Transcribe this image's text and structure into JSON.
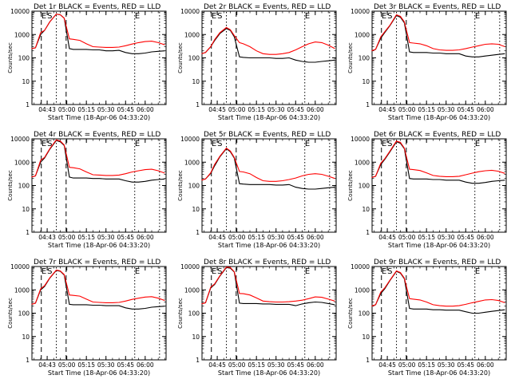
{
  "chart_data": [
    {
      "type": "line",
      "title": "Det 1r BLACK = Events, RED = LLD",
      "xlabel": "Start Time (18-Apr-06 04:33:20)",
      "ylabel": "Counts/sec",
      "xlim": [
        "04:33:20",
        "06:16:00"
      ],
      "ylim": [
        1,
        10000
      ],
      "yscale": "log",
      "x_ticks": [
        "04:43",
        "05:00",
        "05:15",
        "05:30",
        "05:45",
        "06:00"
      ],
      "y_ticks": [
        "1",
        "10",
        "100",
        "1000",
        "10000"
      ],
      "markers": [
        "E",
        "S",
        "E"
      ],
      "x": [
        "04:33",
        "04:36",
        "04:40",
        "04:43",
        "04:47",
        "04:52",
        "04:55",
        "04:58",
        "05:02",
        "05:05",
        "05:10",
        "05:15",
        "05:20",
        "05:25",
        "05:30",
        "05:35",
        "05:40",
        "05:45",
        "05:50",
        "05:55",
        "06:00",
        "06:05",
        "06:10",
        "06:15"
      ],
      "series": [
        {
          "color": "#ff0000",
          "values": [
            250,
            270,
            1200,
            1500,
            3500,
            7500,
            7000,
            5000,
            650,
            620,
            560,
            400,
            300,
            290,
            280,
            280,
            290,
            330,
            390,
            450,
            500,
            520,
            450,
            360
          ]
        },
        {
          "color": "#000000",
          "values": [
            250,
            270,
            1000,
            1500,
            3500,
            7500,
            7000,
            5000,
            250,
            230,
            230,
            230,
            220,
            220,
            200,
            200,
            210,
            170,
            150,
            150,
            160,
            180,
            190,
            200
          ]
        }
      ]
    },
    {
      "type": "line",
      "title": "Det 2r BLACK = Events, RED = LLD",
      "xlabel": "Start Time (18-Apr-06 04:33:20)",
      "ylabel": "Counts/sec",
      "xlim": [
        "04:33:20",
        "06:16:00"
      ],
      "ylim": [
        1,
        10000
      ],
      "yscale": "log",
      "x_ticks": [
        "04:45",
        "05:00",
        "05:15",
        "05:30",
        "05:45",
        "06:00"
      ],
      "y_ticks": [
        "1",
        "10",
        "100",
        "1000",
        "10000"
      ],
      "markers": [
        "E",
        "S",
        "E"
      ],
      "x": [
        "04:33",
        "04:36",
        "04:40",
        "04:43",
        "04:47",
        "04:52",
        "04:55",
        "04:58",
        "05:02",
        "05:05",
        "05:10",
        "05:15",
        "05:20",
        "05:25",
        "05:30",
        "05:35",
        "05:40",
        "05:45",
        "05:50",
        "05:55",
        "06:00",
        "06:05",
        "06:10",
        "06:15"
      ],
      "series": [
        {
          "color": "#ff0000",
          "values": [
            150,
            170,
            300,
            600,
            1200,
            2000,
            1600,
            900,
            450,
            400,
            300,
            200,
            150,
            140,
            140,
            150,
            170,
            220,
            300,
            400,
            480,
            450,
            350,
            250
          ]
        },
        {
          "color": "#000000",
          "values": [
            150,
            170,
            300,
            550,
            1100,
            1800,
            1500,
            800,
            110,
            105,
            100,
            100,
            100,
            100,
            95,
            95,
            100,
            80,
            70,
            65,
            65,
            70,
            75,
            80
          ]
        }
      ]
    },
    {
      "type": "line",
      "title": "Det 3r BLACK = Events, RED = LLD",
      "xlabel": "Start Time (18-Apr-06 04:33:20)",
      "ylabel": "Counts/sec",
      "xlim": [
        "04:33:20",
        "06:16:00"
      ],
      "ylim": [
        1,
        10000
      ],
      "yscale": "log",
      "x_ticks": [
        "04:45",
        "05:00",
        "05:15",
        "05:30",
        "05:45",
        "06:00"
      ],
      "y_ticks": [
        "1",
        "10",
        "100",
        "1000",
        "10000"
      ],
      "markers": [
        "E",
        "S",
        "E"
      ],
      "x": [
        "04:33",
        "04:36",
        "04:40",
        "04:43",
        "04:47",
        "04:52",
        "04:55",
        "04:58",
        "05:02",
        "05:05",
        "05:10",
        "05:15",
        "05:20",
        "05:25",
        "05:30",
        "05:35",
        "05:40",
        "05:45",
        "05:50",
        "05:55",
        "06:00",
        "06:05",
        "06:10",
        "06:15"
      ],
      "series": [
        {
          "color": "#ff0000",
          "values": [
            200,
            230,
            800,
            1300,
            2500,
            7000,
            6000,
            3500,
            450,
            430,
            400,
            330,
            250,
            220,
            210,
            210,
            220,
            250,
            290,
            330,
            380,
            400,
            380,
            300
          ]
        },
        {
          "color": "#000000",
          "values": [
            200,
            230,
            700,
            1200,
            2400,
            6500,
            5500,
            3200,
            180,
            170,
            170,
            170,
            160,
            160,
            150,
            150,
            150,
            120,
            110,
            110,
            120,
            130,
            140,
            150
          ]
        }
      ]
    },
    {
      "type": "line",
      "title": "Det 4r BLACK = Events, RED = LLD",
      "xlabel": "Start Time (18-Apr-06 04:33:20)",
      "ylabel": "Counts/sec",
      "xlim": [
        "04:33:20",
        "06:16:00"
      ],
      "ylim": [
        1,
        10000
      ],
      "yscale": "log",
      "x_ticks": [
        "04:43",
        "05:00",
        "05:15",
        "05:30",
        "05:45",
        "06:00"
      ],
      "y_ticks": [
        "1",
        "10",
        "100",
        "1000",
        "10000"
      ],
      "markers": [
        "E",
        "S",
        "E"
      ],
      "x": [
        "04:33",
        "04:36",
        "04:40",
        "04:43",
        "04:47",
        "04:52",
        "04:55",
        "04:58",
        "05:02",
        "05:05",
        "05:10",
        "05:15",
        "05:20",
        "05:25",
        "05:30",
        "05:35",
        "05:40",
        "05:45",
        "05:50",
        "05:55",
        "06:00",
        "06:05",
        "06:10",
        "06:15"
      ],
      "series": [
        {
          "color": "#ff0000",
          "values": [
            230,
            260,
            1200,
            1600,
            3800,
            9000,
            8000,
            5500,
            600,
            580,
            520,
            380,
            290,
            280,
            270,
            270,
            280,
            320,
            380,
            430,
            480,
            500,
            430,
            340
          ]
        },
        {
          "color": "#000000",
          "values": [
            230,
            260,
            1000,
            1500,
            3600,
            8500,
            7500,
            5200,
            230,
            210,
            210,
            210,
            200,
            200,
            190,
            190,
            190,
            160,
            140,
            140,
            150,
            170,
            180,
            190
          ]
        }
      ]
    },
    {
      "type": "line",
      "title": "Det 5r BLACK = Events, RED = LLD",
      "xlabel": "Start Time (18-Apr-06 04:33:20)",
      "ylabel": "Counts/sec",
      "xlim": [
        "04:33:20",
        "06:16:00"
      ],
      "ylim": [
        1,
        10000
      ],
      "yscale": "log",
      "x_ticks": [
        "04:45",
        "05:00",
        "05:15",
        "05:30",
        "05:45",
        "06:00"
      ],
      "y_ticks": [
        "1",
        "10",
        "100",
        "1000",
        "10000"
      ],
      "markers": [
        "E",
        "S",
        "E"
      ],
      "x": [
        "04:33",
        "04:36",
        "04:40",
        "04:43",
        "04:47",
        "04:52",
        "04:55",
        "04:58",
        "05:02",
        "05:05",
        "05:10",
        "05:15",
        "05:20",
        "05:25",
        "05:30",
        "05:35",
        "05:40",
        "05:45",
        "05:50",
        "05:55",
        "06:00",
        "06:05",
        "06:10",
        "06:15"
      ],
      "series": [
        {
          "color": "#ff0000",
          "values": [
            170,
            190,
            350,
            800,
            1800,
            4000,
            3000,
            1600,
            400,
            380,
            320,
            220,
            160,
            150,
            150,
            160,
            180,
            210,
            260,
            300,
            320,
            300,
            250,
            200
          ]
        },
        {
          "color": "#000000",
          "values": [
            170,
            190,
            330,
            700,
            1700,
            3800,
            2800,
            1500,
            120,
            115,
            110,
            110,
            110,
            110,
            105,
            105,
            110,
            85,
            75,
            70,
            70,
            75,
            80,
            85
          ]
        }
      ]
    },
    {
      "type": "line",
      "title": "Det 6r BLACK = Events, RED = LLD",
      "xlabel": "Start Time (18-Apr-06 04:33:20)",
      "ylabel": "Counts/sec",
      "xlim": [
        "04:33:20",
        "06:16:00"
      ],
      "ylim": [
        1,
        10000
      ],
      "yscale": "log",
      "x_ticks": [
        "04:45",
        "05:00",
        "05:15",
        "05:30",
        "05:45",
        "06:00"
      ],
      "y_ticks": [
        "1",
        "10",
        "100",
        "1000",
        "10000"
      ],
      "markers": [
        "E",
        "S",
        "E"
      ],
      "x": [
        "04:33",
        "04:36",
        "04:40",
        "04:43",
        "04:47",
        "04:52",
        "04:55",
        "04:58",
        "05:02",
        "05:05",
        "05:10",
        "05:15",
        "05:20",
        "05:25",
        "05:30",
        "05:35",
        "05:40",
        "05:45",
        "05:50",
        "05:55",
        "06:00",
        "06:05",
        "06:10",
        "06:15"
      ],
      "series": [
        {
          "color": "#ff0000",
          "values": [
            220,
            250,
            900,
            1400,
            3000,
            8000,
            7000,
            4000,
            500,
            480,
            440,
            350,
            270,
            250,
            240,
            240,
            250,
            290,
            340,
            390,
            430,
            450,
            410,
            330
          ]
        },
        {
          "color": "#000000",
          "values": [
            220,
            250,
            800,
            1300,
            2800,
            7500,
            6500,
            3800,
            200,
            190,
            190,
            190,
            180,
            180,
            170,
            170,
            170,
            140,
            125,
            125,
            135,
            150,
            160,
            170
          ]
        }
      ]
    },
    {
      "type": "line",
      "title": "Det 7r BLACK = Events, RED = LLD",
      "xlabel": "Start Time (18-Apr-06 04:33:20)",
      "ylabel": "Counts/sec",
      "xlim": [
        "04:33:20",
        "06:16:00"
      ],
      "ylim": [
        1,
        10000
      ],
      "yscale": "log",
      "x_ticks": [
        "04:43",
        "05:00",
        "05:15",
        "05:30",
        "05:45",
        "06:00"
      ],
      "y_ticks": [
        "1",
        "10",
        "100",
        "1000",
        "10000"
      ],
      "markers": [
        "E",
        "S",
        "E"
      ],
      "x": [
        "04:33",
        "04:36",
        "04:40",
        "04:43",
        "04:47",
        "04:52",
        "04:55",
        "04:58",
        "05:02",
        "05:05",
        "05:10",
        "05:15",
        "05:20",
        "05:25",
        "05:30",
        "05:35",
        "05:40",
        "05:45",
        "05:50",
        "05:55",
        "06:00",
        "06:05",
        "06:10",
        "06:15"
      ],
      "series": [
        {
          "color": "#ff0000",
          "values": [
            240,
            270,
            1100,
            1500,
            3300,
            7000,
            6500,
            4500,
            600,
            580,
            540,
            400,
            300,
            290,
            280,
            280,
            290,
            330,
            390,
            440,
            490,
            510,
            440,
            350
          ]
        },
        {
          "color": "#000000",
          "values": [
            240,
            270,
            1000,
            1400,
            3200,
            6800,
            6300,
            4300,
            240,
            230,
            230,
            230,
            220,
            220,
            210,
            210,
            210,
            170,
            150,
            150,
            160,
            180,
            190,
            200
          ]
        }
      ]
    },
    {
      "type": "line",
      "title": "Det 8r BLACK = Events, RED = LLD",
      "xlabel": "Start Time (18-Apr-06 04:33:20)",
      "ylabel": "Counts/sec",
      "xlim": [
        "04:33:20",
        "06:16:00"
      ],
      "ylim": [
        1,
        10000
      ],
      "yscale": "log",
      "x_ticks": [
        "04:45",
        "05:00",
        "05:15",
        "05:30",
        "05:45",
        "06:00"
      ],
      "y_ticks": [
        "1",
        "10",
        "100",
        "1000",
        "10000"
      ],
      "markers": [
        "E",
        "S",
        "E"
      ],
      "x": [
        "04:33",
        "04:36",
        "04:40",
        "04:43",
        "04:47",
        "04:52",
        "04:55",
        "04:58",
        "05:02",
        "05:05",
        "05:10",
        "05:15",
        "05:20",
        "05:25",
        "05:30",
        "05:35",
        "05:40",
        "05:45",
        "05:50",
        "05:55",
        "06:00",
        "06:05",
        "06:10",
        "06:15"
      ],
      "series": [
        {
          "color": "#ff0000",
          "values": [
            250,
            280,
            1300,
            1800,
            4000,
            9500,
            9000,
            6000,
            700,
            680,
            600,
            450,
            330,
            310,
            300,
            300,
            310,
            330,
            360,
            420,
            500,
            480,
            400,
            330
          ]
        },
        {
          "color": "#000000",
          "values": [
            250,
            280,
            1200,
            1700,
            3900,
            9000,
            8500,
            5800,
            270,
            260,
            260,
            260,
            250,
            250,
            240,
            240,
            240,
            210,
            250,
            280,
            300,
            290,
            260,
            230
          ]
        }
      ]
    },
    {
      "type": "line",
      "title": "Det 9r BLACK = Events, RED = LLD",
      "xlabel": "Start Time (18-Apr-06 04:33:20)",
      "ylabel": "Counts/sec",
      "xlim": [
        "04:33:20",
        "06:16:00"
      ],
      "ylim": [
        1,
        10000
      ],
      "yscale": "log",
      "x_ticks": [
        "04:45",
        "05:00",
        "05:15",
        "05:30",
        "05:45",
        "06:00"
      ],
      "y_ticks": [
        "1",
        "10",
        "100",
        "1000",
        "10000"
      ],
      "markers": [
        "E",
        "S",
        "E"
      ],
      "x": [
        "04:33",
        "04:36",
        "04:40",
        "04:43",
        "04:47",
        "04:52",
        "04:55",
        "04:58",
        "05:02",
        "05:05",
        "05:10",
        "05:15",
        "05:20",
        "05:25",
        "05:30",
        "05:35",
        "05:40",
        "05:45",
        "05:50",
        "05:55",
        "06:00",
        "06:05",
        "06:10",
        "06:15"
      ],
      "series": [
        {
          "color": "#ff0000",
          "values": [
            200,
            230,
            800,
            1200,
            2600,
            6500,
            5500,
            3200,
            420,
            400,
            370,
            300,
            230,
            210,
            200,
            200,
            210,
            240,
            280,
            320,
            370,
            380,
            350,
            280
          ]
        },
        {
          "color": "#000000",
          "values": [
            200,
            230,
            700,
            1100,
            2500,
            6200,
            5200,
            3000,
            160,
            150,
            150,
            150,
            140,
            140,
            135,
            135,
            135,
            115,
            100,
            100,
            110,
            120,
            130,
            140
          ]
        }
      ]
    }
  ]
}
